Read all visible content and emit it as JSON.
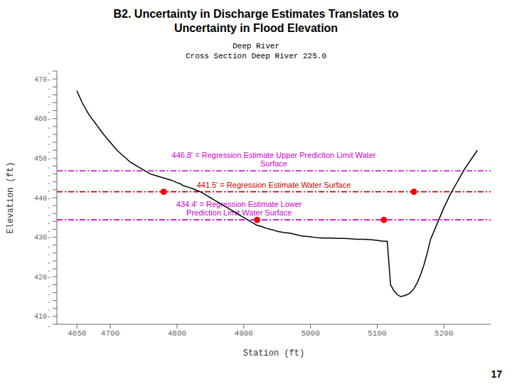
{
  "chart_data": {
    "type": "line",
    "title": "B2. Uncertainty in Discharge Estimates Translates to\nUncertainty in Flood Elevation",
    "subtitle": "Deep River\nCross Section Deep River 225.0",
    "xlabel": "Station (ft)",
    "ylabel": "Elevation (ft)",
    "page_number": "17",
    "grid": false,
    "xlim": [
      4620,
      5270
    ],
    "ylim": [
      408,
      472
    ],
    "xticks": [
      4650,
      4700,
      4800,
      4900,
      5000,
      5100,
      5200
    ],
    "yticks": [
      {
        "value": 408,
        "label": "."
      },
      {
        "value": 410,
        "label": "410-"
      },
      {
        "value": 412,
        "label": "."
      },
      {
        "value": 414,
        "label": "."
      },
      {
        "value": 416,
        "label": "."
      },
      {
        "value": 418,
        "label": "."
      },
      {
        "value": 420,
        "label": "420-"
      },
      {
        "value": 422,
        "label": "."
      },
      {
        "value": 424,
        "label": "."
      },
      {
        "value": 426,
        "label": "."
      },
      {
        "value": 428,
        "label": "."
      },
      {
        "value": 430,
        "label": "430-"
      },
      {
        "value": 432,
        "label": "."
      },
      {
        "value": 434,
        "label": "."
      },
      {
        "value": 436,
        "label": "."
      },
      {
        "value": 438,
        "label": "."
      },
      {
        "value": 440,
        "label": "440-"
      },
      {
        "value": 442,
        "label": "."
      },
      {
        "value": 444,
        "label": "."
      },
      {
        "value": 446,
        "label": "."
      },
      {
        "value": 448,
        "label": "."
      },
      {
        "value": 450,
        "label": "450-"
      },
      {
        "value": 452,
        "label": "."
      },
      {
        "value": 454,
        "label": "."
      },
      {
        "value": 456,
        "label": "."
      },
      {
        "value": 458,
        "label": "."
      },
      {
        "value": 460,
        "label": "460-"
      },
      {
        "value": 462,
        "label": "."
      },
      {
        "value": 464,
        "label": "."
      },
      {
        "value": 466,
        "label": "."
      },
      {
        "value": 468,
        "label": "."
      },
      {
        "value": 470,
        "label": "470-"
      },
      {
        "value": 472,
        "label": "."
      }
    ],
    "series": [
      {
        "type": "line",
        "color": "#000000",
        "line_style": "solid",
        "x": [
          4650,
          4658,
          4668,
          4690,
          4710,
          4730,
          4750,
          4760,
          4770,
          4780,
          4790,
          4795,
          4800,
          4805,
          4810,
          4820,
          4825,
          4830,
          4835,
          4840,
          4845,
          4850,
          4855,
          4860,
          4870,
          4880,
          4890,
          4895,
          4900,
          4905,
          4910,
          4915,
          4920,
          4925,
          4930,
          4935,
          4940,
          4945,
          4950,
          4960,
          4970,
          4975,
          4980,
          4985,
          4990,
          4995,
          5000,
          5005,
          5010,
          5020,
          5030,
          5040,
          5050,
          5060,
          5070,
          5080,
          5090,
          5095,
          5100,
          5105,
          5110,
          5115,
          5120,
          5125,
          5130,
          5135,
          5140,
          5145,
          5150,
          5155,
          5160,
          5165,
          5170,
          5175,
          5180,
          5190,
          5200,
          5210,
          5220,
          5230,
          5250
        ],
        "values": [
          467.0,
          464.0,
          461.0,
          456.0,
          452.0,
          449.0,
          447.0,
          446.0,
          445.5,
          445.0,
          444.5,
          444.2,
          443.8,
          443.5,
          443.0,
          442.5,
          442.2,
          441.8,
          441.5,
          441.0,
          440.5,
          440.0,
          439.5,
          439.0,
          438.0,
          437.0,
          436.0,
          435.5,
          435.0,
          434.5,
          434.0,
          433.5,
          433.0,
          432.8,
          432.5,
          432.2,
          432.0,
          431.8,
          431.5,
          431.2,
          431.0,
          430.8,
          430.6,
          430.4,
          430.3,
          430.2,
          430.1,
          430.0,
          429.9,
          429.8,
          429.8,
          429.7,
          429.7,
          429.6,
          429.5,
          429.5,
          429.4,
          429.3,
          429.2,
          429.1,
          429.0,
          429.0,
          418.0,
          416.5,
          415.5,
          415.0,
          415.2,
          415.5,
          416.0,
          417.0,
          418.5,
          420.5,
          423.0,
          426.0,
          429.5,
          433.5,
          437.5,
          441.0,
          444.0,
          447.0,
          452.0
        ]
      },
      {
        "type": "scatter",
        "color": "#ff0000",
        "marker": "circle",
        "x": [
          4780,
          5155
        ],
        "values": [
          441.5,
          441.5
        ]
      },
      {
        "type": "scatter",
        "color": "#ff0000",
        "marker": "circle",
        "x": [
          4920,
          5110
        ],
        "values": [
          434.4,
          434.4
        ]
      }
    ],
    "reference_lines": [
      {
        "value": 446.8,
        "color": "#cc00cc",
        "line_style": "dashdot",
        "label": "446.8' = Regression Estimate Upper Prediction Limit Water\nSurface"
      },
      {
        "value": 441.5,
        "color": "#cc0000",
        "line_style": "dashdot",
        "label": "441.5' = Regression Estimate Water Surface"
      },
      {
        "value": 434.4,
        "color": "#cc00cc",
        "line_style": "dashdot",
        "label": "434.4' = Regression Estimate Lower\nPrediction Limit Water Surface"
      }
    ]
  }
}
